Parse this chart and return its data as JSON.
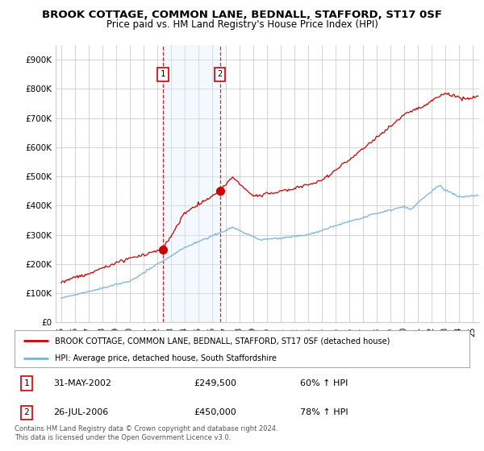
{
  "title1": "BROOK COTTAGE, COMMON LANE, BEDNALL, STAFFORD, ST17 0SF",
  "title2": "Price paid vs. HM Land Registry's House Price Index (HPI)",
  "ylabel_ticks": [
    "£0",
    "£100K",
    "£200K",
    "£300K",
    "£400K",
    "£500K",
    "£600K",
    "£700K",
    "£800K",
    "£900K"
  ],
  "ytick_vals": [
    0,
    100000,
    200000,
    300000,
    400000,
    500000,
    600000,
    700000,
    800000,
    900000
  ],
  "ylim": [
    0,
    950000
  ],
  "xlim_start": 1994.6,
  "xlim_end": 2025.5,
  "sale1_x": 2002.42,
  "sale1_y": 249500,
  "sale1_label": "1",
  "sale1_date": "31-MAY-2002",
  "sale1_price": "£249,500",
  "sale1_hpi": "60% ↑ HPI",
  "sale2_x": 2006.58,
  "sale2_y": 450000,
  "sale2_label": "2",
  "sale2_date": "26-JUL-2006",
  "sale2_price": "£450,000",
  "sale2_hpi": "78% ↑ HPI",
  "hpi_line_color": "#7ab3d8",
  "price_line_color": "#cc0000",
  "sale_dot_color": "#cc0000",
  "vline_color": "#cc0000",
  "shade_color": "#ddeeff",
  "grid_color": "#cccccc",
  "background_color": "#ffffff",
  "legend_entry1": "BROOK COTTAGE, COMMON LANE, BEDNALL, STAFFORD, ST17 0SF (detached house)",
  "legend_entry2": "HPI: Average price, detached house, South Staffordshire",
  "footnote": "Contains HM Land Registry data © Crown copyright and database right 2024.\nThis data is licensed under the Open Government Licence v3.0."
}
